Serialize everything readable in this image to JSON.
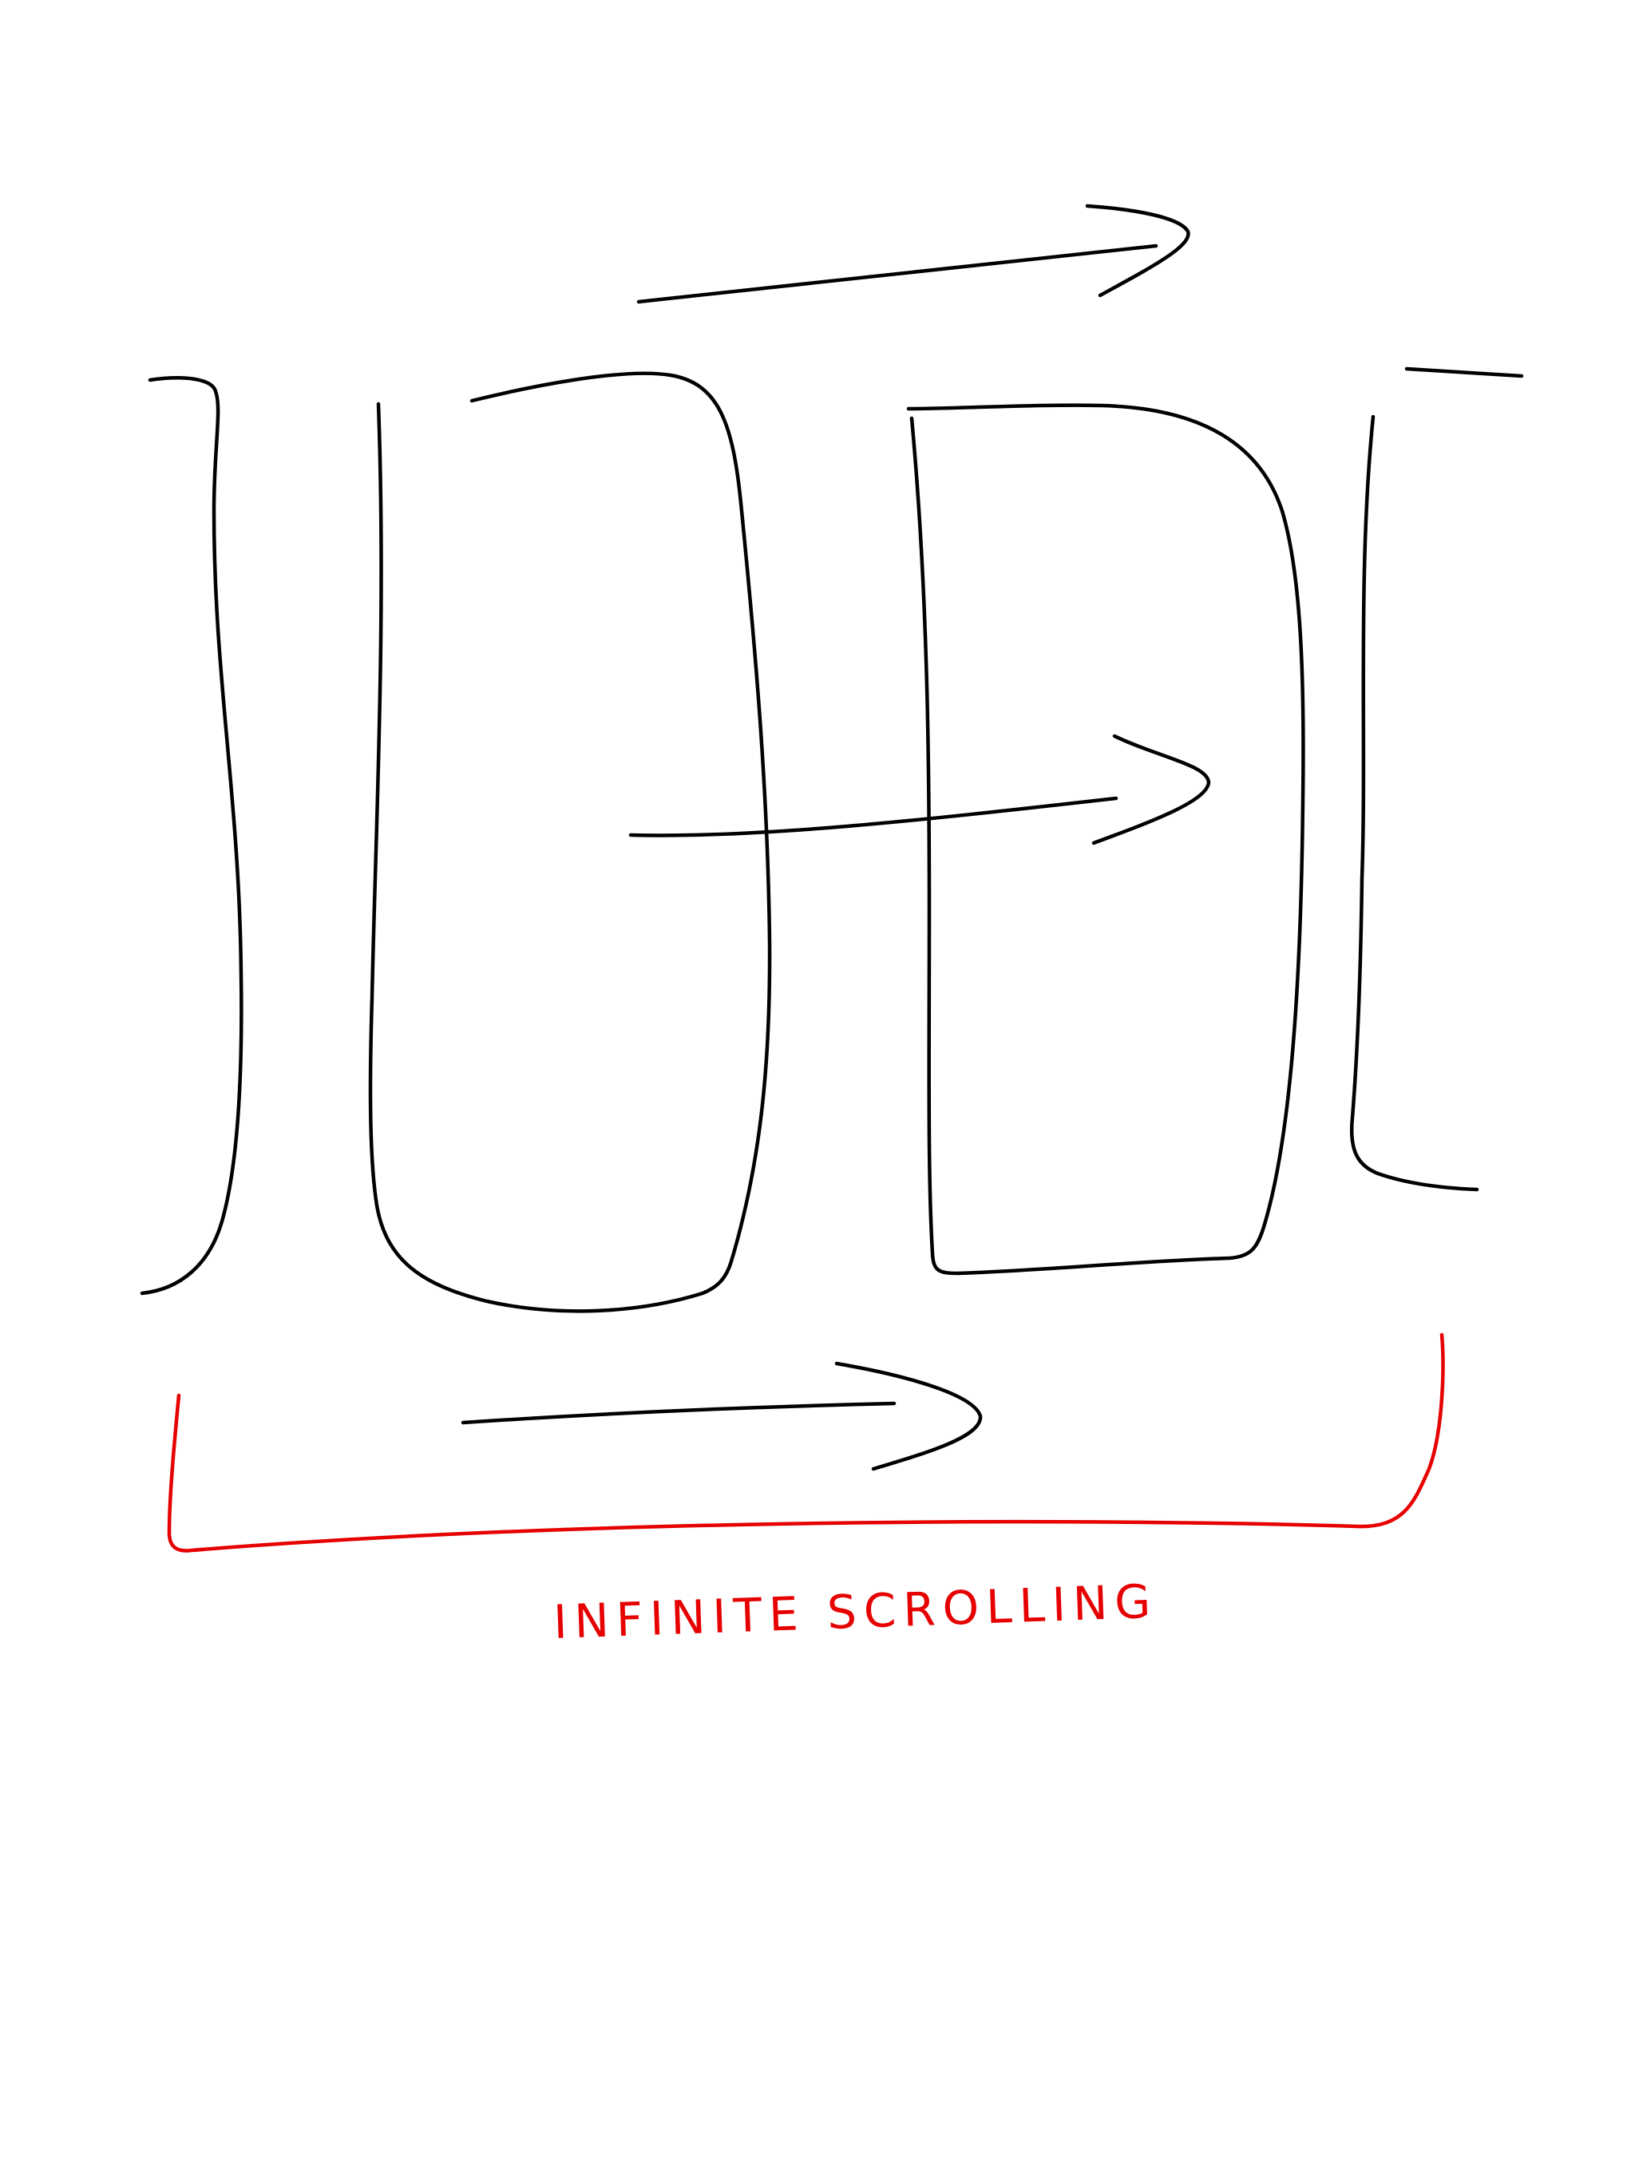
{
  "diagram": {
    "caption": "INFINITE SCROLLING",
    "colors": {
      "background": "#ffffff",
      "sketch_ink": "#000000",
      "annotation_ink": "#e60000"
    },
    "elements": [
      "card-left-partial",
      "card-second",
      "card-third",
      "card-right-partial",
      "arrow-top",
      "arrow-middle",
      "arrow-bottom",
      "bracket-infinite-scroll"
    ]
  }
}
